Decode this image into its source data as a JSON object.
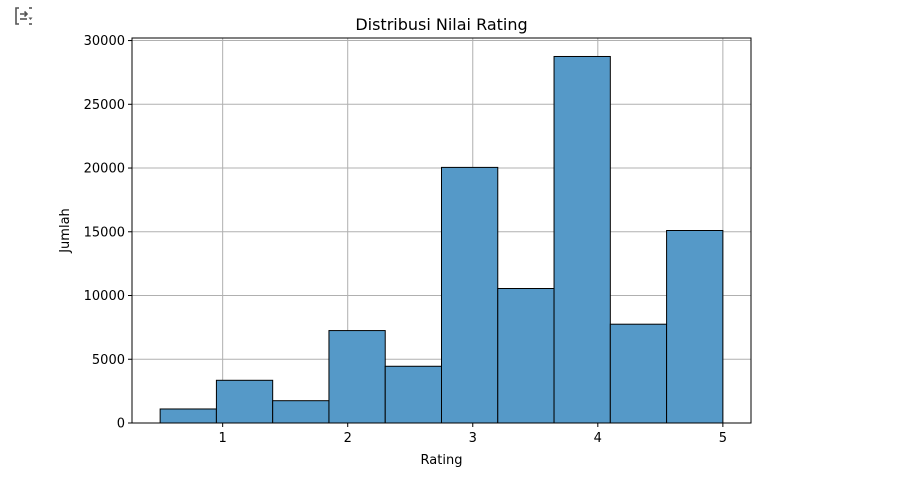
{
  "chart_data": {
    "type": "bar",
    "title": "Distribusi Nilai Rating",
    "xlabel": "Rating",
    "ylabel": "Jumlah",
    "bins": [
      {
        "start": 0.5,
        "end": 0.95,
        "value": 1100
      },
      {
        "start": 0.95,
        "end": 1.4,
        "value": 3350
      },
      {
        "start": 1.4,
        "end": 1.85,
        "value": 1750
      },
      {
        "start": 1.85,
        "end": 2.3,
        "value": 7250
      },
      {
        "start": 2.3,
        "end": 2.75,
        "value": 4450
      },
      {
        "start": 2.75,
        "end": 3.2,
        "value": 20050
      },
      {
        "start": 3.2,
        "end": 3.65,
        "value": 10550
      },
      {
        "start": 3.65,
        "end": 4.1,
        "value": 28750
      },
      {
        "start": 4.1,
        "end": 4.55,
        "value": 7750
      },
      {
        "start": 4.55,
        "end": 5.0,
        "value": 15100
      }
    ],
    "xlim": [
      0.275,
      5.225
    ],
    "ylim": [
      0,
      30200
    ],
    "xticks": [
      1,
      2,
      3,
      4,
      5
    ],
    "xtick_labels": [
      "1",
      "2",
      "3",
      "4",
      "5"
    ],
    "yticks": [
      0,
      5000,
      10000,
      15000,
      20000,
      25000,
      30000
    ],
    "ytick_labels": [
      "0",
      "5000",
      "10000",
      "15000",
      "20000",
      "25000",
      "30000"
    ],
    "grid": true,
    "colors": {
      "bar_fill": "#5599c8",
      "bar_edge": "#000000",
      "grid": "#b0b0b0"
    }
  },
  "ui": {
    "output_icon": "output-toggle-icon"
  }
}
